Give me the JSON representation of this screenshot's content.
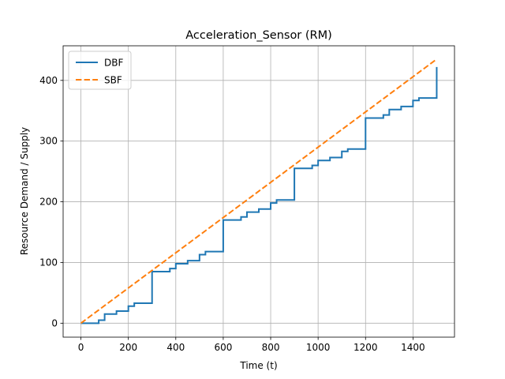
{
  "chart_data": {
    "type": "line",
    "title": "Acceleration_Sensor (RM)",
    "xlabel": "Time (t)",
    "ylabel": "Resource Demand / Supply",
    "xlim": [
      -75,
      1575
    ],
    "ylim": [
      -23,
      457
    ],
    "xticks": [
      0,
      200,
      400,
      600,
      800,
      1000,
      1200,
      1400
    ],
    "yticks": [
      0,
      100,
      200,
      300,
      400
    ],
    "grid": true,
    "legend_position": "upper-left",
    "series": [
      {
        "name": "DBF",
        "color": "#1f77b4",
        "style": "solid",
        "step": true,
        "x": [
          0,
          75,
          100,
          150,
          200,
          225,
          300,
          375,
          400,
          450,
          500,
          525,
          600,
          675,
          700,
          750,
          800,
          825,
          900,
          975,
          1000,
          1050,
          1100,
          1125,
          1200,
          1275,
          1300,
          1350,
          1400,
          1425,
          1500
        ],
        "y": [
          0,
          5,
          15,
          20,
          28,
          33,
          85,
          90,
          98,
          103,
          113,
          118,
          170,
          175,
          183,
          188,
          198,
          203,
          255,
          260,
          268,
          273,
          283,
          287,
          338,
          343,
          352,
          357,
          367,
          371,
          422
        ]
      },
      {
        "name": "SBF",
        "color": "#ff7f0e",
        "style": "dashed",
        "step": false,
        "x": [
          0,
          1500
        ],
        "y": [
          0,
          435
        ]
      }
    ]
  }
}
